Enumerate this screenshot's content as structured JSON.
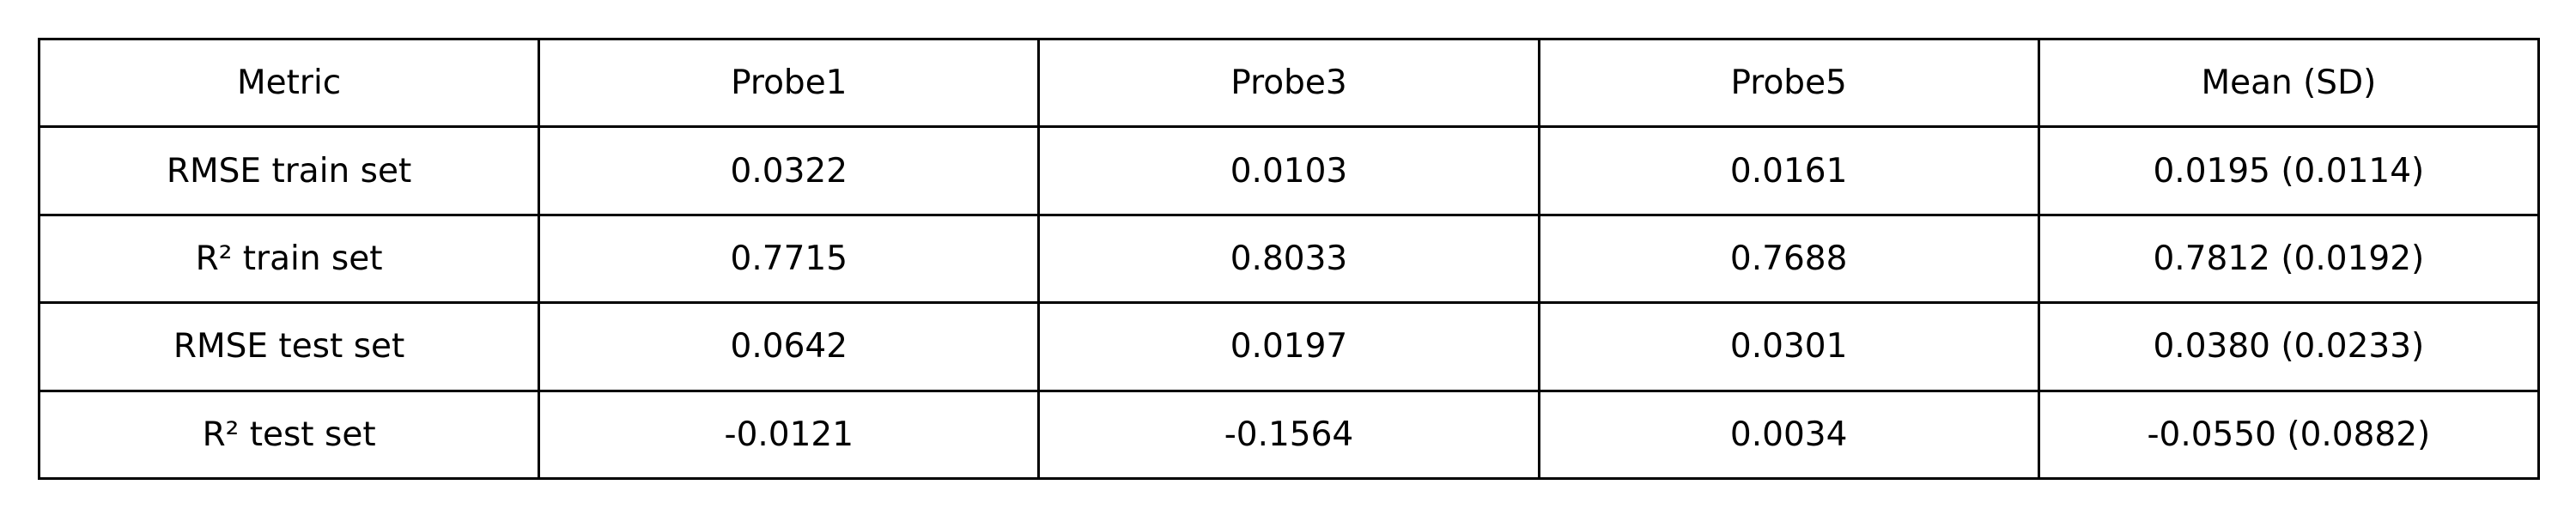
{
  "chart_data": {
    "type": "table",
    "columns": [
      "Metric",
      "Probe1",
      "Probe3",
      "Probe5",
      "Mean (SD)"
    ],
    "rows": [
      [
        "RMSE train set",
        "0.0322",
        "0.0103",
        "0.0161",
        "0.0195 (0.0114)"
      ],
      [
        "R² train set",
        "0.7715",
        "0.8033",
        "0.7688",
        "0.7812 (0.0192)"
      ],
      [
        "RMSE test set",
        "0.0642",
        "0.0197",
        "0.0301",
        "0.0380 (0.0233)"
      ],
      [
        "R² test set",
        "-0.0121",
        "-0.1564",
        "0.0034",
        "-0.0550 (0.0882)"
      ]
    ]
  }
}
